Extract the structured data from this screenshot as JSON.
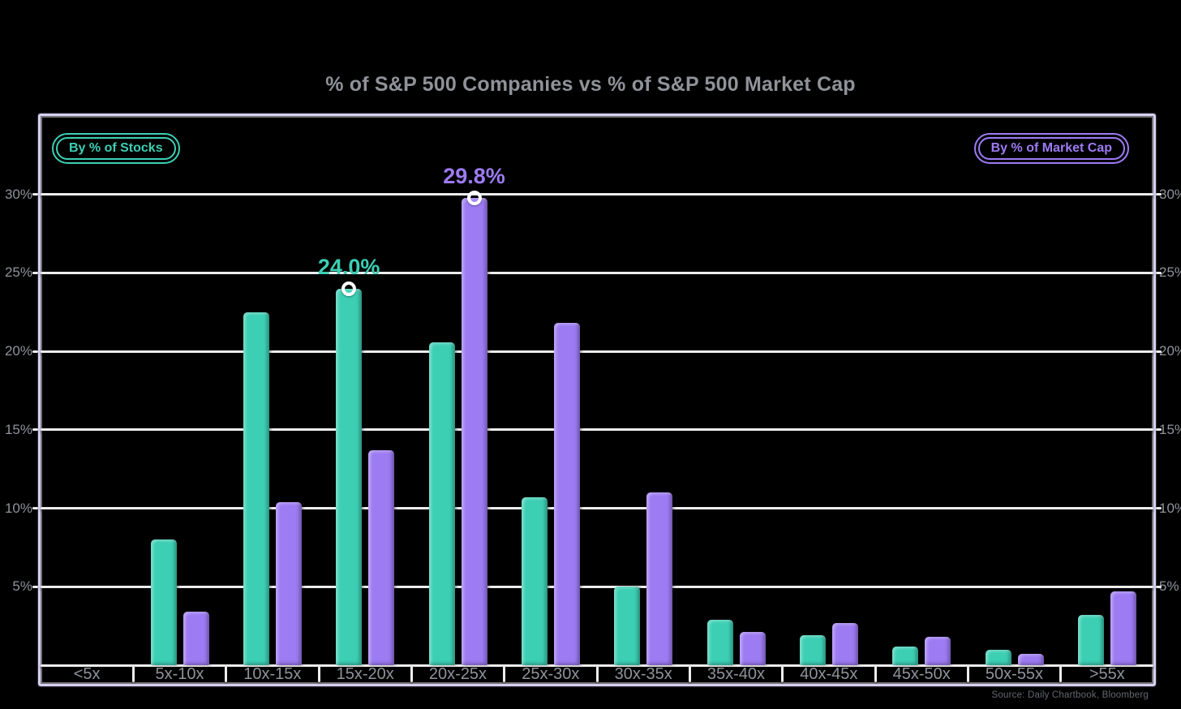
{
  "title": "% of S&P 500 Companies vs % of S&P 500 Market Cap",
  "legend": {
    "stocks_label": "By % of Stocks",
    "market_cap_label": "By % of Market Cap"
  },
  "source": "Source: Daily Chartbook, Bloomberg",
  "colors": {
    "stocks": "#3CCFB4",
    "market_cap": "#9D7BF3",
    "background": "#000000",
    "grid": "#EDEDED",
    "axis_text": "#8F939A",
    "frame": "#D6CFF2"
  },
  "y_axis": {
    "tick_labels": [
      "5%",
      "10%",
      "15%",
      "20%",
      "25%",
      "30%"
    ],
    "tick_values": [
      5,
      10,
      15,
      20,
      25,
      30
    ],
    "shown_on_both_sides": true
  },
  "chart_data": {
    "type": "bar",
    "title": "% of S&P 500 Companies vs % of S&P 500 Market Cap",
    "categories": [
      "<5x",
      "5x-10x",
      "10x-15x",
      "15x-20x",
      "20x-25x",
      "25x-30x",
      "30x-35x",
      "35x-40x",
      "40x-45x",
      "45x-50x",
      "50x-55x",
      ">55x"
    ],
    "series": [
      {
        "name": "By % of Stocks",
        "color": "#3CCFB4",
        "values": [
          0,
          8.0,
          22.5,
          24.0,
          20.6,
          10.7,
          5.0,
          2.9,
          1.9,
          1.2,
          1.0,
          3.2
        ]
      },
      {
        "name": "By % of Market Cap",
        "color": "#9D7BF3",
        "values": [
          0,
          3.4,
          10.4,
          13.7,
          29.8,
          21.8,
          11.0,
          2.1,
          2.7,
          1.8,
          0.7,
          4.7
        ]
      }
    ],
    "annotations": [
      {
        "series_index": 0,
        "category_index": 3,
        "label": "24.0%",
        "color": "#3CCFB4"
      },
      {
        "series_index": 1,
        "category_index": 4,
        "label": "29.8%",
        "color": "#9D7BF3"
      }
    ],
    "ylim": [
      0,
      35
    ],
    "gridline_values": [
      0,
      5,
      10,
      15,
      20,
      25,
      30
    ],
    "grid": true,
    "legend_position": "top-left and top-right pills"
  }
}
